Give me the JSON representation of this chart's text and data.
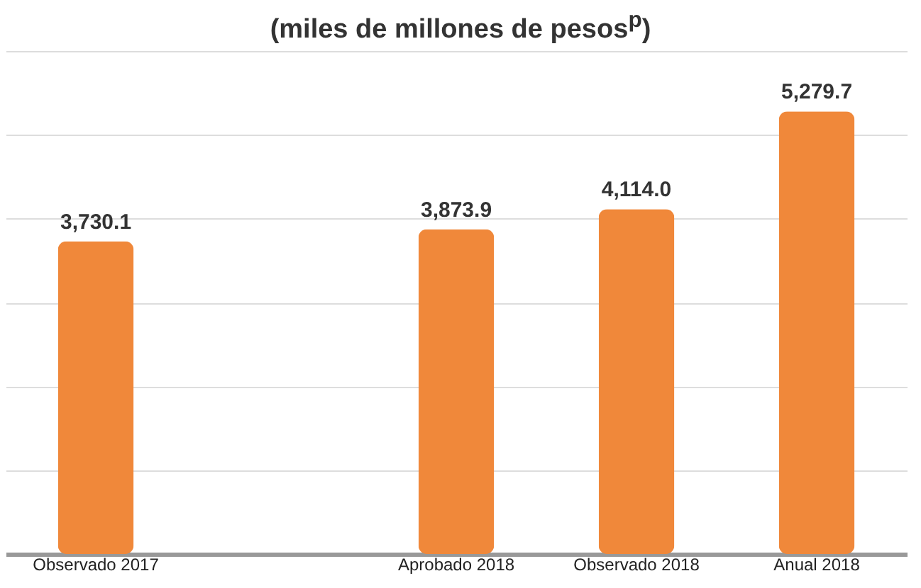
{
  "chart_data": {
    "type": "bar",
    "title": "(miles de millones de pesos$^{p}$)",
    "categories": [
      "Observado 2017",
      null,
      "Aprobado 2018",
      "Observado 2018",
      "Anual 2018"
    ],
    "values": [
      3730.1,
      null,
      3873.9,
      4114.0,
      5279.7
    ],
    "value_labels": [
      "3,730.1",
      null,
      "3,873.9",
      "4,114.0",
      "5,279.7"
    ],
    "color": "#f0883a",
    "ylim": [
      0,
      6000
    ],
    "yticks": [
      {
        "value": 1000,
        "label": null
      },
      {
        "value": 2000,
        "label": null
      },
      {
        "value": 3000,
        "label": null
      },
      {
        "value": 4000,
        "label": null
      },
      {
        "value": 5000,
        "label": null
      },
      {
        "value": 6000,
        "label": null
      }
    ],
    "grid": "y",
    "tick_labels": "x"
  }
}
